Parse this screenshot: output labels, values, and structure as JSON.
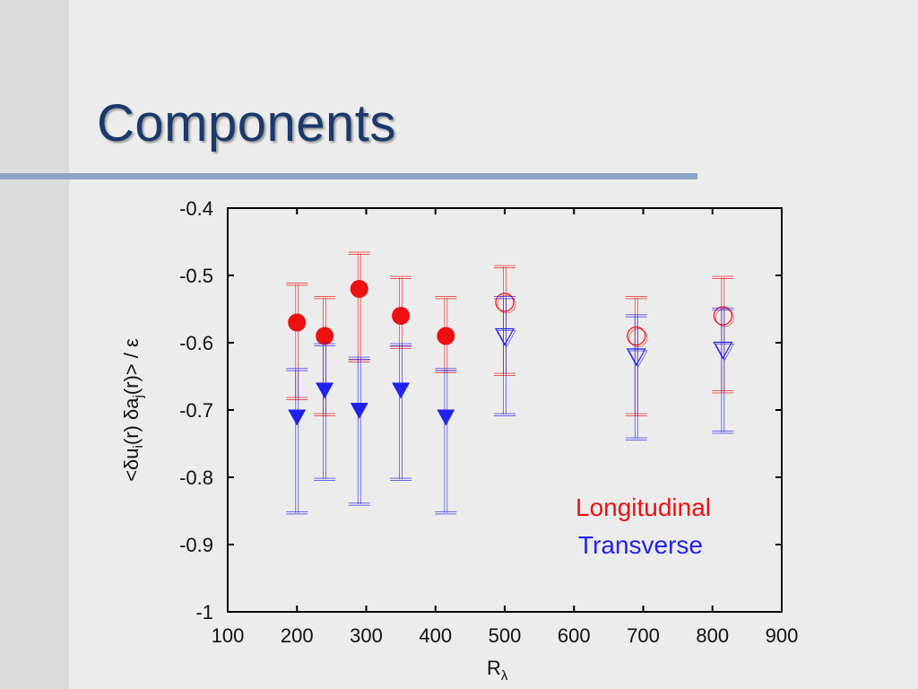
{
  "slide": {
    "title": "Components"
  },
  "chart_data": {
    "type": "scatter",
    "xlabel": "R",
    "xlabel_sub": "λ",
    "ylabel": "<δu_i(r) δa_j(r)> / ε",
    "xlim": [
      100,
      900
    ],
    "ylim": [
      -1,
      -0.4
    ],
    "x_ticks": [
      "100",
      "200",
      "300",
      "400",
      "500",
      "600",
      "700",
      "800",
      "900"
    ],
    "y_ticks": [
      "-0.4",
      "-0.5",
      "-0.6",
      "-0.7",
      "-0.8",
      "-0.9",
      "-1"
    ],
    "legend": [
      "Longitudinal",
      "Transverse"
    ],
    "series": [
      {
        "name": "Longitudinal",
        "color": "#ee1111",
        "marker": "circle",
        "points": [
          {
            "x": 200,
            "y": -0.57,
            "ylo": -0.683,
            "yhi": -0.513,
            "filled": true
          },
          {
            "x": 240,
            "y": -0.59,
            "ylo": -0.707,
            "yhi": -0.533,
            "filled": true
          },
          {
            "x": 290,
            "y": -0.52,
            "ylo": -0.627,
            "yhi": -0.467,
            "filled": true
          },
          {
            "x": 350,
            "y": -0.56,
            "ylo": -0.607,
            "yhi": -0.503,
            "filled": true
          },
          {
            "x": 415,
            "y": -0.59,
            "ylo": -0.643,
            "yhi": -0.533,
            "filled": true
          },
          {
            "x": 500,
            "y": -0.54,
            "ylo": -0.647,
            "yhi": -0.487,
            "filled": false
          },
          {
            "x": 690,
            "y": -0.59,
            "ylo": -0.707,
            "yhi": -0.533,
            "filled": false
          },
          {
            "x": 815,
            "y": -0.56,
            "ylo": -0.673,
            "yhi": -0.503,
            "filled": false
          }
        ]
      },
      {
        "name": "Transverse",
        "color": "#2222ee",
        "marker": "triangle-down",
        "points": [
          {
            "x": 200,
            "y": -0.71,
            "ylo": -0.853,
            "yhi": -0.64,
            "filled": true
          },
          {
            "x": 240,
            "y": -0.67,
            "ylo": -0.803,
            "yhi": -0.603,
            "filled": true
          },
          {
            "x": 290,
            "y": -0.7,
            "ylo": -0.84,
            "yhi": -0.623,
            "filled": true
          },
          {
            "x": 350,
            "y": -0.67,
            "ylo": -0.803,
            "yhi": -0.603,
            "filled": true
          },
          {
            "x": 415,
            "y": -0.71,
            "ylo": -0.853,
            "yhi": -0.64,
            "filled": true
          },
          {
            "x": 500,
            "y": -0.59,
            "ylo": -0.707,
            "yhi": -0.533,
            "filled": false
          },
          {
            "x": 690,
            "y": -0.62,
            "ylo": -0.743,
            "yhi": -0.56,
            "filled": false
          },
          {
            "x": 815,
            "y": -0.61,
            "ylo": -0.733,
            "yhi": -0.55,
            "filled": false
          }
        ]
      }
    ]
  }
}
